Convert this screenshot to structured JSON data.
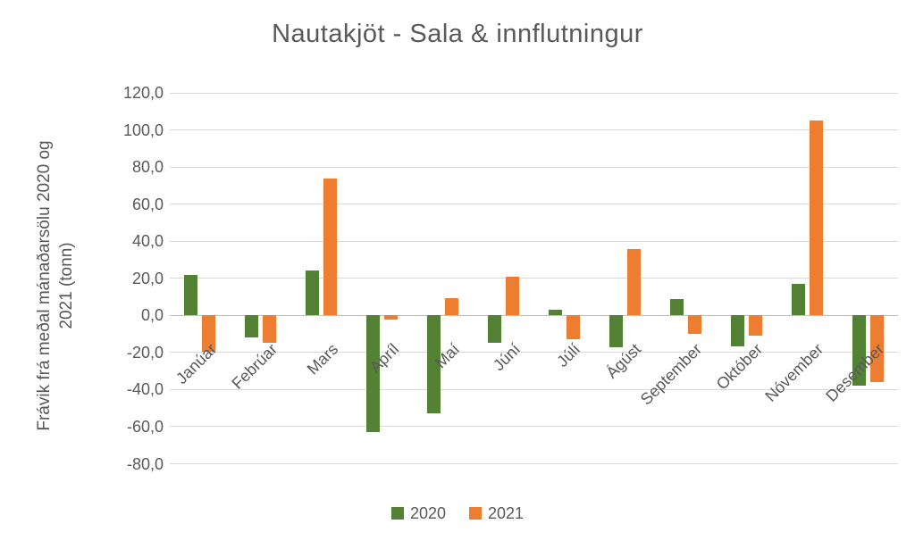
{
  "chart_data": {
    "type": "bar",
    "title": "Nautakjöt - Sala & innflutningur",
    "ylabel": "Frávik frá meðal mánaðarsölu 2020 og 2021 (tonn)",
    "ylabel_lines": [
      "Frávik frá meðal mánaðarsölu 2020 og",
      "2021 (tonn)"
    ],
    "xlabel": "",
    "categories": [
      "Janúar",
      "Febrúar",
      "Mars",
      "Apríl",
      "Maí",
      "Júní",
      "Júlí",
      "Ágúst",
      "September",
      "Október",
      "Nóvember",
      "Desember"
    ],
    "series": [
      {
        "name": "2020",
        "color": "#548235",
        "values": [
          22,
          -12,
          24,
          -63,
          -53,
          -15,
          3,
          -17,
          9,
          -16.5,
          17,
          -38
        ]
      },
      {
        "name": "2021",
        "color": "#ED7D31",
        "values": [
          -19.5,
          -15,
          74,
          -2.5,
          9.5,
          21,
          -13,
          36,
          -10,
          -11,
          105,
          -36
        ]
      }
    ],
    "y_ticks": [
      {
        "value": 120,
        "label": "120,0"
      },
      {
        "value": 100,
        "label": "100,0"
      },
      {
        "value": 80,
        "label": "80,0"
      },
      {
        "value": 60,
        "label": "60,0"
      },
      {
        "value": 40,
        "label": "40,0"
      },
      {
        "value": 20,
        "label": "20,0"
      },
      {
        "value": 0,
        "label": "0,0"
      },
      {
        "value": -20,
        "label": "-20,0"
      },
      {
        "value": -40,
        "label": "-40,0"
      },
      {
        "value": -60,
        "label": "-60,0"
      },
      {
        "value": -80,
        "label": "-80,0"
      }
    ],
    "ylim": [
      -80,
      120
    ],
    "grid": true,
    "legend_position": "bottom",
    "colors": {
      "series_2020": "#548235",
      "series_2021": "#ED7D31",
      "text": "#595959",
      "gridline": "#D9D9D9",
      "zero_axis": "#BFBFBF",
      "background": "#FFFFFF"
    }
  }
}
